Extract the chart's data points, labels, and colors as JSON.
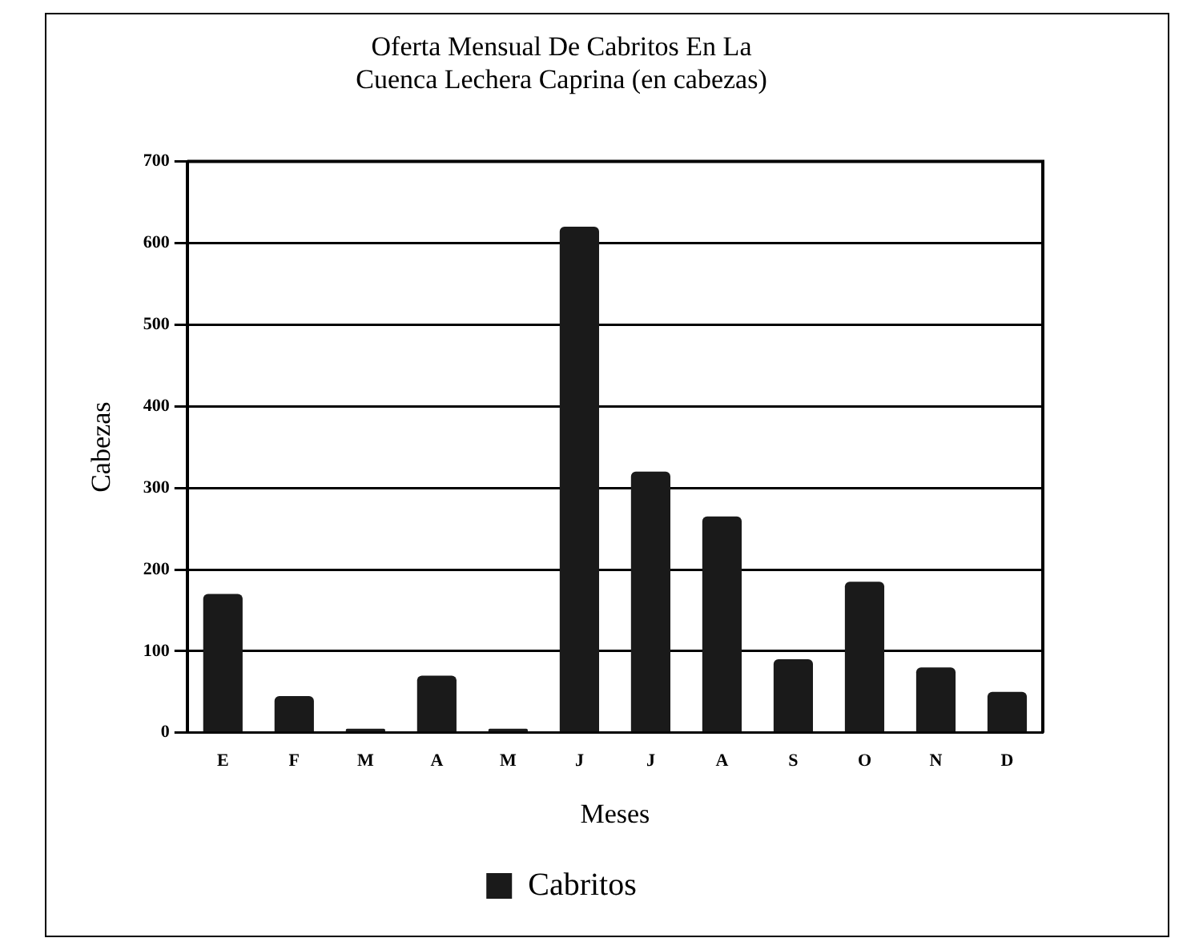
{
  "chart_data": {
    "type": "bar",
    "title": [
      "Oferta Mensual De Cabritos En La",
      "Cuenca Lechera Caprina (en cabezas)"
    ],
    "xlabel": "Meses",
    "ylabel": "Cabezas",
    "categories": [
      "E",
      "F",
      "M",
      "A",
      "M",
      "J",
      "J",
      "A",
      "S",
      "O",
      "N",
      "D"
    ],
    "series": [
      {
        "name": "Cabritos",
        "color": "#1a1a1a",
        "values": [
          170,
          45,
          5,
          70,
          5,
          620,
          320,
          265,
          90,
          185,
          80,
          50
        ]
      }
    ],
    "ylim": [
      0,
      700
    ],
    "yticks": [
      0,
      100,
      200,
      300,
      400,
      500,
      600,
      700
    ],
    "grid": "y",
    "legend": "bottom"
  }
}
